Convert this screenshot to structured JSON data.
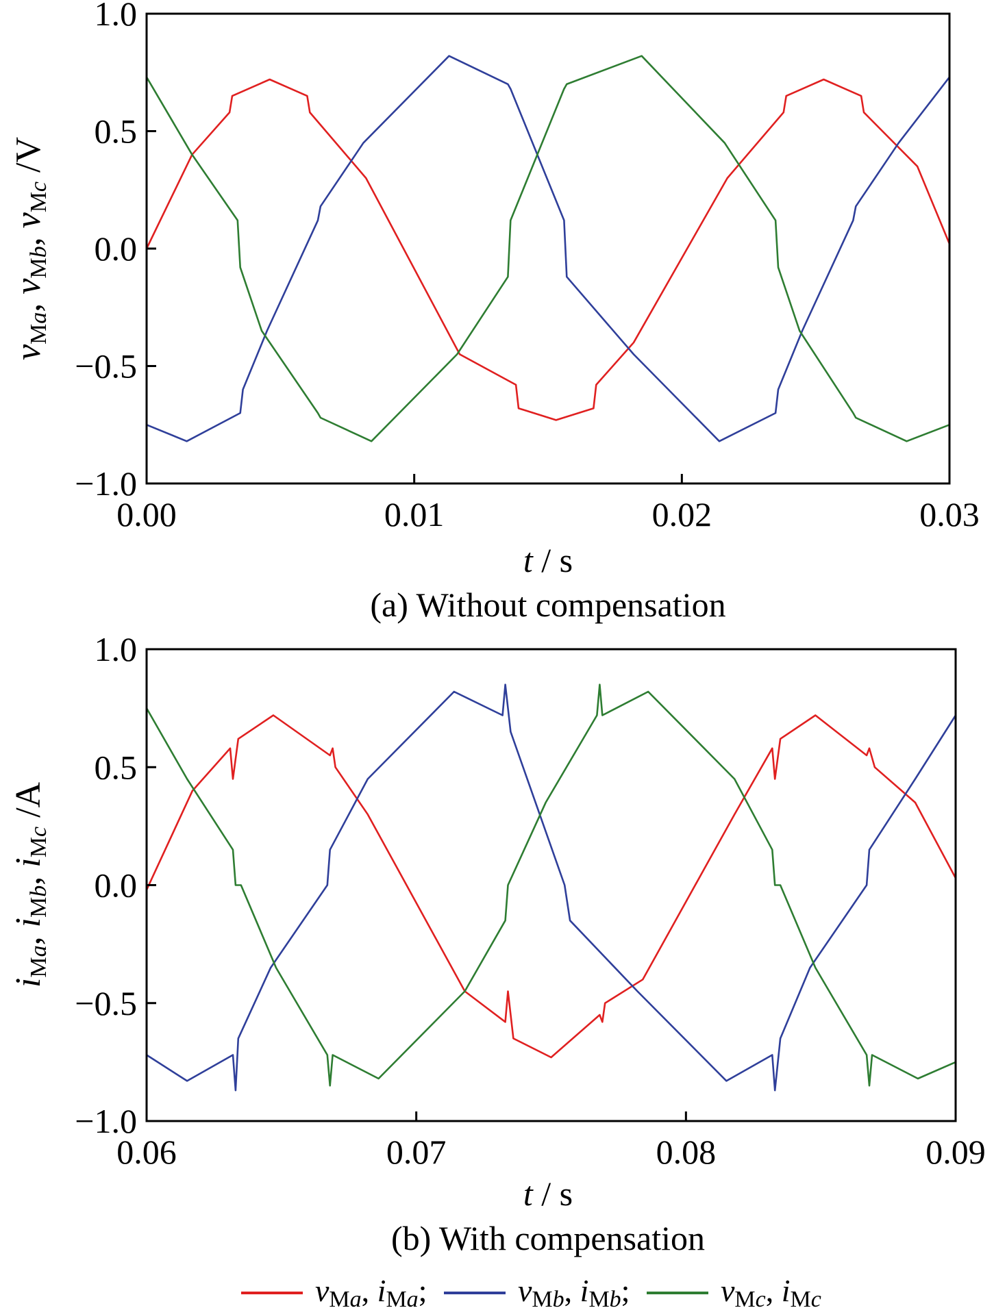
{
  "chart_data": [
    {
      "type": "line",
      "caption": "(a) Without compensation",
      "xlabel": "t / s",
      "ylabel": "vMa, vMb, vMc /V",
      "xlim": [
        0.0,
        0.03
      ],
      "ylim": [
        -1.0,
        1.0
      ],
      "x_ticks": [
        "0.00",
        "0.01",
        "0.02",
        "0.03"
      ],
      "y_ticks": [
        "1.0",
        "0.5",
        "0.0",
        "−0.5",
        "−1.0"
      ],
      "grid": false,
      "series": [
        {
          "name": "vMa",
          "color": "#e02020",
          "x": [
            0.0,
            0.0017,
            0.0031,
            0.0032,
            0.0046,
            0.006,
            0.0061,
            0.0082,
            0.0117,
            0.0138,
            0.0139,
            0.0153,
            0.0167,
            0.0168,
            0.0182,
            0.0217,
            0.0238,
            0.0239,
            0.0253,
            0.0267,
            0.0268,
            0.0288,
            0.03
          ],
          "y": [
            0.0,
            0.4,
            0.58,
            0.65,
            0.72,
            0.65,
            0.58,
            0.3,
            -0.45,
            -0.58,
            -0.68,
            -0.73,
            -0.68,
            -0.58,
            -0.4,
            0.3,
            0.58,
            0.65,
            0.72,
            0.65,
            0.58,
            0.35,
            0.02
          ]
        },
        {
          "name": "vMb",
          "color": "#2f3f9a",
          "x": [
            0.0,
            0.0015,
            0.0035,
            0.0036,
            0.0045,
            0.0064,
            0.0065,
            0.0081,
            0.0113,
            0.0135,
            0.0136,
            0.0156,
            0.0157,
            0.0182,
            0.0214,
            0.0235,
            0.0236,
            0.0245,
            0.0264,
            0.0265,
            0.0281,
            0.03
          ],
          "y": [
            -0.75,
            -0.82,
            -0.7,
            -0.6,
            -0.35,
            0.12,
            0.18,
            0.45,
            0.82,
            0.7,
            0.68,
            0.12,
            -0.12,
            -0.45,
            -0.82,
            -0.7,
            -0.6,
            -0.35,
            0.12,
            0.18,
            0.45,
            0.73
          ]
        },
        {
          "name": "vMc",
          "color": "#2e7d32",
          "x": [
            0.0,
            0.0017,
            0.0034,
            0.0035,
            0.0043,
            0.0064,
            0.0065,
            0.0084,
            0.0116,
            0.0135,
            0.0136,
            0.0156,
            0.0157,
            0.0185,
            0.0216,
            0.0235,
            0.0236,
            0.0244,
            0.0264,
            0.0265,
            0.0284,
            0.03
          ],
          "y": [
            0.73,
            0.4,
            0.12,
            -0.08,
            -0.35,
            -0.7,
            -0.72,
            -0.82,
            -0.45,
            -0.12,
            0.12,
            0.68,
            0.7,
            0.82,
            0.45,
            0.12,
            -0.08,
            -0.35,
            -0.7,
            -0.72,
            -0.82,
            -0.75
          ]
        }
      ]
    },
    {
      "type": "line",
      "caption": "(b) With compensation",
      "xlabel": "t / s",
      "ylabel": "iMa, iMb, iMc /A",
      "xlim": [
        0.06,
        0.09
      ],
      "ylim": [
        -1.0,
        1.0
      ],
      "x_ticks": [
        "0.06",
        "0.07",
        "0.08",
        "0.09"
      ],
      "y_ticks": [
        "1.0",
        "0.5",
        "0.0",
        "−0.5",
        "−1.0"
      ],
      "grid": false,
      "series": [
        {
          "name": "iMa",
          "color": "#e02020",
          "x": [
            0.06,
            0.0617,
            0.0631,
            0.0632,
            0.0634,
            0.0647,
            0.0668,
            0.0669,
            0.067,
            0.0682,
            0.0718,
            0.0733,
            0.0734,
            0.0736,
            0.075,
            0.0768,
            0.0769,
            0.077,
            0.0784,
            0.0818,
            0.0832,
            0.0833,
            0.0835,
            0.0848,
            0.0867,
            0.0868,
            0.087,
            0.0885,
            0.09
          ],
          "y": [
            -0.02,
            0.4,
            0.58,
            0.45,
            0.62,
            0.72,
            0.55,
            0.58,
            0.5,
            0.3,
            -0.45,
            -0.58,
            -0.45,
            -0.65,
            -0.73,
            -0.55,
            -0.58,
            -0.5,
            -0.4,
            0.3,
            0.58,
            0.45,
            0.62,
            0.72,
            0.55,
            0.58,
            0.5,
            0.35,
            0.03
          ]
        },
        {
          "name": "iMb",
          "color": "#2f3f9a",
          "x": [
            0.06,
            0.0615,
            0.0632,
            0.0633,
            0.0634,
            0.0646,
            0.0667,
            0.0668,
            0.0682,
            0.0714,
            0.0732,
            0.0733,
            0.0735,
            0.0755,
            0.0757,
            0.0782,
            0.0815,
            0.0832,
            0.0833,
            0.0835,
            0.0846,
            0.0867,
            0.0868,
            0.0885,
            0.09
          ],
          "y": [
            -0.72,
            -0.83,
            -0.72,
            -0.87,
            -0.65,
            -0.35,
            0.0,
            0.15,
            0.45,
            0.82,
            0.72,
            0.85,
            0.65,
            0.0,
            -0.15,
            -0.45,
            -0.83,
            -0.72,
            -0.87,
            -0.65,
            -0.35,
            0.0,
            0.15,
            0.45,
            0.72
          ]
        },
        {
          "name": "iMc",
          "color": "#2e7d32",
          "x": [
            0.06,
            0.0615,
            0.0632,
            0.0633,
            0.0635,
            0.0648,
            0.0667,
            0.0668,
            0.0669,
            0.0686,
            0.0718,
            0.0733,
            0.0734,
            0.0748,
            0.0767,
            0.0768,
            0.0769,
            0.0786,
            0.0818,
            0.0832,
            0.0833,
            0.0835,
            0.0848,
            0.0867,
            0.0868,
            0.0869,
            0.0886,
            0.09
          ],
          "y": [
            0.75,
            0.45,
            0.15,
            0.0,
            0.0,
            -0.35,
            -0.72,
            -0.85,
            -0.72,
            -0.82,
            -0.45,
            -0.15,
            0.0,
            0.35,
            0.72,
            0.85,
            0.72,
            0.82,
            0.45,
            0.15,
            0.0,
            0.0,
            -0.35,
            -0.72,
            -0.85,
            -0.72,
            -0.82,
            -0.75
          ]
        }
      ]
    }
  ],
  "legend": [
    {
      "label": "vMa, iMa;",
      "color": "#e02020"
    },
    {
      "label": "vMb, iMb;",
      "color": "#2f3f9a"
    },
    {
      "label": "vMc, iMc",
      "color": "#2e7d32"
    }
  ]
}
